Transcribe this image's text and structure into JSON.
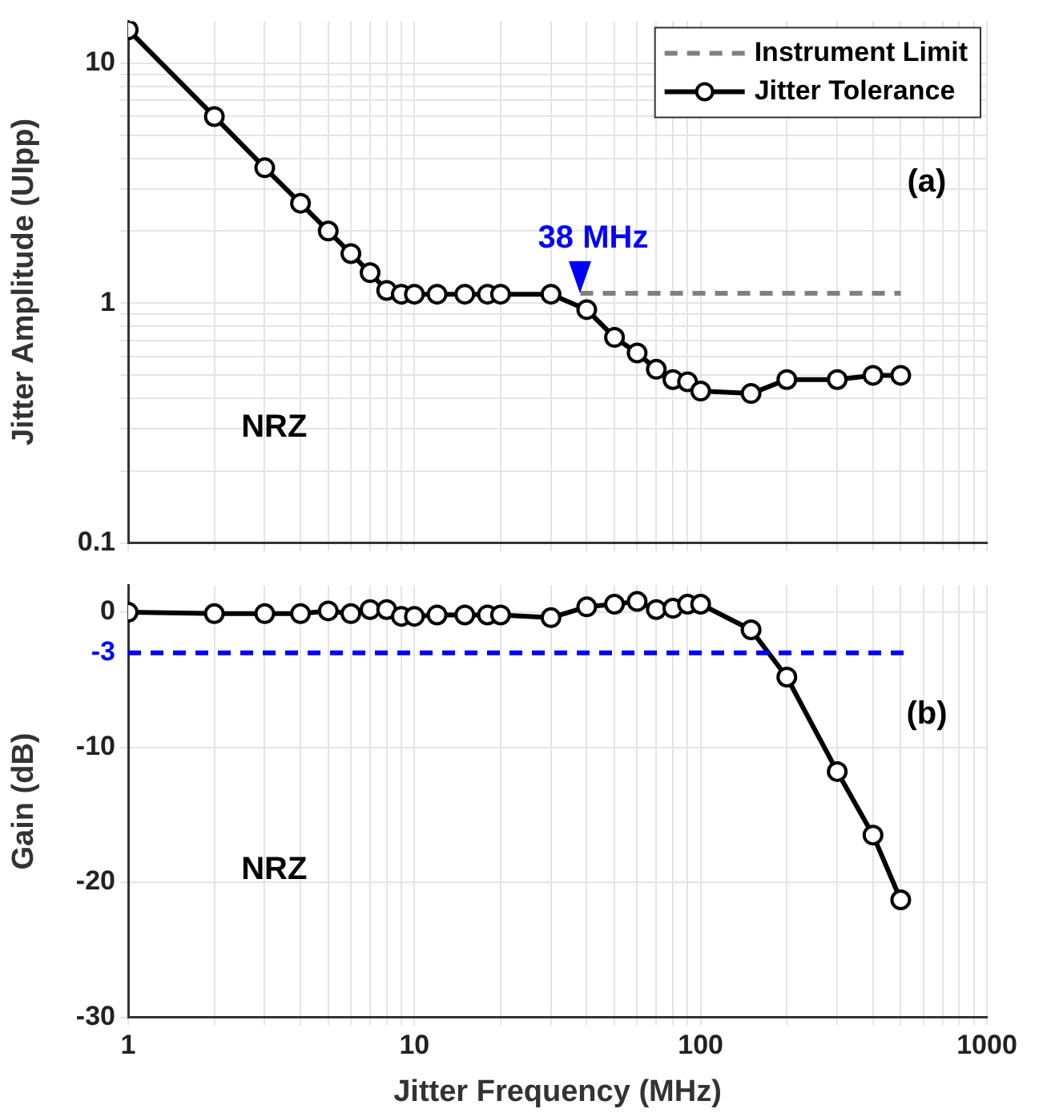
{
  "chart_data": [
    {
      "type": "line",
      "ylabel": "Jitter Amplitude (UIpp)",
      "log": "xy",
      "grid": true,
      "legend": "top right",
      "tick_labels": "y",
      "xlim": [
        1,
        1000
      ],
      "xticks": [
        1,
        {
          "value": 2,
          "label": null
        },
        {
          "value": 3,
          "label": null
        },
        {
          "value": 4,
          "label": null
        },
        {
          "value": 5,
          "label": null
        },
        {
          "value": 6,
          "label": null
        },
        {
          "value": 7,
          "label": null
        },
        {
          "value": 8,
          "label": null
        },
        {
          "value": 9,
          "label": null
        },
        10,
        {
          "value": 20,
          "label": null
        },
        {
          "value": 30,
          "label": null
        },
        {
          "value": 40,
          "label": null
        },
        {
          "value": 50,
          "label": null
        },
        {
          "value": 60,
          "label": null
        },
        {
          "value": 70,
          "label": null
        },
        {
          "value": 80,
          "label": null
        },
        {
          "value": 90,
          "label": null
        },
        100,
        {
          "value": 200,
          "label": null
        },
        {
          "value": 300,
          "label": null
        },
        {
          "value": 400,
          "label": null
        },
        {
          "value": 500,
          "label": null
        },
        {
          "value": 600,
          "label": null
        },
        {
          "value": 700,
          "label": null
        },
        {
          "value": 800,
          "label": null
        },
        {
          "value": 900,
          "label": null
        },
        1000
      ],
      "ylim": [
        0.1,
        15
      ],
      "yticks": [
        0.1,
        {
          "value": 0.2,
          "label": null
        },
        {
          "value": 0.3,
          "label": null
        },
        {
          "value": 0.4,
          "label": null
        },
        {
          "value": 0.5,
          "label": null
        },
        {
          "value": 0.6,
          "label": null
        },
        {
          "value": 0.7,
          "label": null
        },
        {
          "value": 0.8,
          "label": null
        },
        {
          "value": 0.9,
          "label": null
        },
        1,
        {
          "value": 2,
          "label": null
        },
        {
          "value": 3,
          "label": null
        },
        {
          "value": 4,
          "label": null
        },
        {
          "value": 5,
          "label": null
        },
        {
          "value": 6,
          "label": null
        },
        {
          "value": 7,
          "label": null
        },
        {
          "value": 8,
          "label": null
        },
        {
          "value": 9,
          "label": null
        },
        10
      ],
      "series": [
        {
          "name": "Instrument Limit",
          "type": "line",
          "color": "#808080",
          "line_style": "dashed",
          "marker": "none",
          "x": [
            38,
            500
          ],
          "values": [
            1.1,
            1.1
          ]
        },
        {
          "name": "Jitter Tolerance",
          "type": "line",
          "color": "#000000",
          "line_style": "solid",
          "marker": "circle",
          "x": [
            1,
            2,
            3,
            4,
            5,
            6,
            7,
            8,
            9,
            10,
            12,
            15,
            18,
            20,
            30,
            40,
            50,
            60,
            70,
            80,
            90,
            100,
            150,
            200,
            300,
            400,
            500
          ],
          "values": [
            13.8,
            6.0,
            3.67,
            2.61,
            2.0,
            1.61,
            1.34,
            1.13,
            1.09,
            1.09,
            1.09,
            1.09,
            1.09,
            1.09,
            1.09,
            0.94,
            0.72,
            0.62,
            0.53,
            0.48,
            0.47,
            0.43,
            0.42,
            0.48,
            0.48,
            0.5,
            0.5
          ]
        }
      ],
      "annotations": [
        "NRZ",
        "(a)",
        {
          "text": "38 MHz",
          "x": 38,
          "y": 1.1
        }
      ]
    },
    {
      "type": "line",
      "xlabel": "Jitter Frequency (MHz)",
      "ylabel": "Gain (dB)",
      "log": "x",
      "grid": true,
      "xlim": [
        1,
        1000
      ],
      "xticks": [
        1,
        {
          "value": 2,
          "label": null
        },
        {
          "value": 3,
          "label": null
        },
        {
          "value": 4,
          "label": null
        },
        {
          "value": 5,
          "label": null
        },
        {
          "value": 6,
          "label": null
        },
        {
          "value": 7,
          "label": null
        },
        {
          "value": 8,
          "label": null
        },
        {
          "value": 9,
          "label": null
        },
        10,
        {
          "value": 20,
          "label": null
        },
        {
          "value": 30,
          "label": null
        },
        {
          "value": 40,
          "label": null
        },
        {
          "value": 50,
          "label": null
        },
        {
          "value": 60,
          "label": null
        },
        {
          "value": 70,
          "label": null
        },
        {
          "value": 80,
          "label": null
        },
        {
          "value": 90,
          "label": null
        },
        100,
        {
          "value": 200,
          "label": null
        },
        {
          "value": 300,
          "label": null
        },
        {
          "value": 400,
          "label": null
        },
        {
          "value": 500,
          "label": null
        },
        {
          "value": 600,
          "label": null
        },
        {
          "value": 700,
          "label": null
        },
        {
          "value": 800,
          "label": null
        },
        {
          "value": 900,
          "label": null
        },
        1000
      ],
      "ylim": [
        -30,
        2
      ],
      "yticks": [
        -30,
        -20,
        -10,
        0
      ],
      "series": [
        {
          "type": "line",
          "color": "#000000",
          "line_style": "solid",
          "marker": "circle",
          "x": [
            1,
            2,
            3,
            4,
            5,
            6,
            7,
            8,
            9,
            10,
            12,
            15,
            18,
            20,
            30,
            40,
            50,
            60,
            70,
            80,
            90,
            100,
            150,
            200,
            300,
            400,
            500
          ],
          "values": [
            0,
            -0.1,
            -0.1,
            -0.1,
            0.1,
            -0.1,
            0.2,
            0.2,
            -0.3,
            -0.3,
            -0.2,
            -0.2,
            -0.2,
            -0.2,
            -0.4,
            0.4,
            0.6,
            0.8,
            0.2,
            0.3,
            0.6,
            0.6,
            -1.3,
            -4.8,
            -11.8,
            -16.5,
            -21.3
          ]
        }
      ],
      "ref_lines": [
        {
          "axis": "y",
          "value": -3,
          "label": "-3",
          "color": "#0000ff",
          "line_style": "dashed"
        }
      ],
      "annotations": [
        "NRZ",
        "(b)"
      ]
    }
  ]
}
